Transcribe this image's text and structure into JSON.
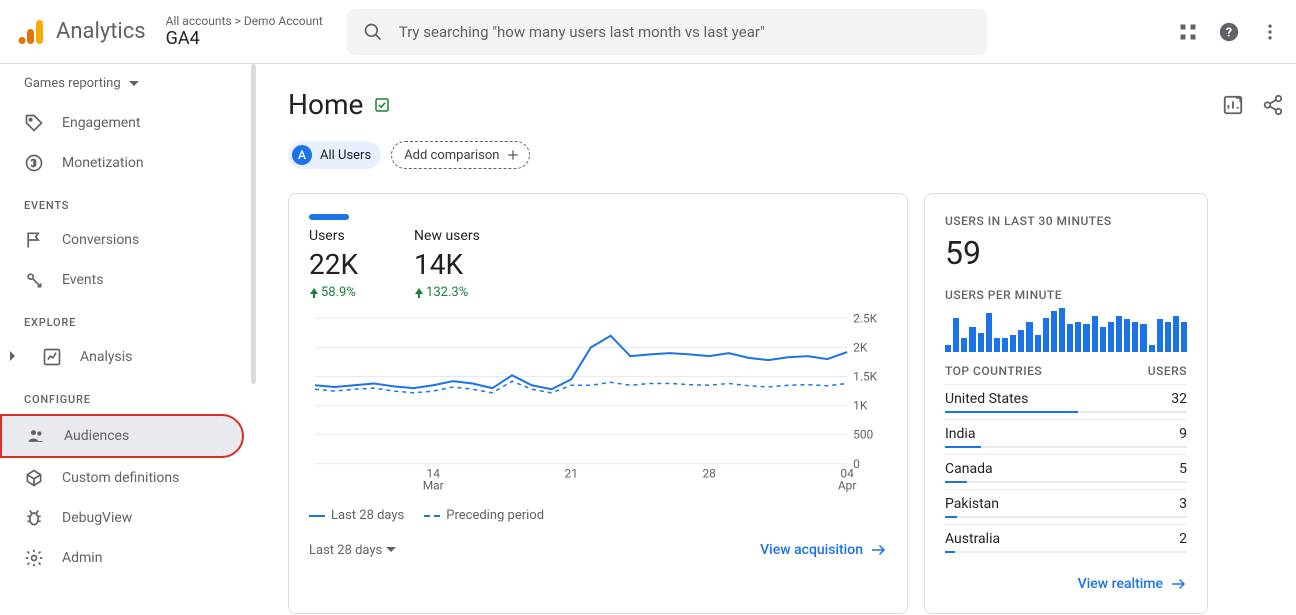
{
  "header": {
    "product": "Analytics",
    "breadcrumb": "All accounts > Demo Account",
    "property": "GA4",
    "search_placeholder": "Try searching \"how many users last month vs last year\""
  },
  "sidebar": {
    "report_selector": "Games reporting",
    "items": [
      {
        "icon": "tag",
        "label": "Engagement"
      },
      {
        "icon": "dollar",
        "label": "Monetization"
      }
    ],
    "section_events": "EVENTS",
    "events_items": [
      {
        "icon": "flag",
        "label": "Conversions"
      },
      {
        "icon": "events",
        "label": "Events"
      }
    ],
    "section_explore": "EXPLORE",
    "explore_items": [
      {
        "icon": "analysis",
        "label": "Analysis"
      }
    ],
    "section_configure": "CONFIGURE",
    "configure_items": [
      {
        "icon": "audiences",
        "label": "Audiences",
        "highlighted": true
      },
      {
        "icon": "custom",
        "label": "Custom definitions"
      },
      {
        "icon": "debug",
        "label": "DebugView"
      }
    ],
    "admin": {
      "icon": "gear",
      "label": "Admin"
    }
  },
  "page": {
    "title": "Home",
    "audience_badge": "A",
    "audience_label": "All Users",
    "add_comparison": "Add comparison"
  },
  "main_card": {
    "metrics": [
      {
        "label": "Users",
        "value": "22K",
        "change": "58.9%"
      },
      {
        "label": "New users",
        "value": "14K",
        "change": "132.3%"
      }
    ],
    "chart": {
      "type": "line",
      "y_ticks": [
        "2.5K",
        "2K",
        "1.5K",
        "1K",
        "500",
        "0"
      ],
      "y_values": [
        2500,
        2000,
        1500,
        1000,
        500,
        0
      ],
      "x_ticks_top": [
        "14",
        "21",
        "28",
        "04"
      ],
      "x_ticks_bottom": [
        "Mar",
        "",
        "",
        "Apr"
      ],
      "series_current": [
        1350,
        1320,
        1350,
        1380,
        1330,
        1300,
        1350,
        1420,
        1380,
        1300,
        1520,
        1350,
        1280,
        1450,
        2000,
        2200,
        1850,
        1880,
        1900,
        1880,
        1850,
        1900,
        1820,
        1780,
        1830,
        1850,
        1800,
        1920
      ],
      "series_previous": [
        1280,
        1250,
        1280,
        1300,
        1250,
        1220,
        1250,
        1320,
        1280,
        1220,
        1420,
        1280,
        1220,
        1350,
        1350,
        1400,
        1350,
        1380,
        1380,
        1360,
        1350,
        1380,
        1340,
        1320,
        1350,
        1360,
        1340,
        1380
      ],
      "ylim": [
        0,
        2500
      ],
      "line_color": "#1a73e8",
      "grid_color": "#e8eaed",
      "background_color": "#ffffff"
    },
    "legend": [
      {
        "label": "Last 28 days",
        "style": "solid"
      },
      {
        "label": "Preceding period",
        "style": "dashed"
      }
    ],
    "date_range": "Last 28 days",
    "link": "View acquisition"
  },
  "realtime_card": {
    "label1": "USERS IN LAST 30 MINUTES",
    "value": "59",
    "label2": "USERS PER MINUTE",
    "spark_values": [
      5,
      25,
      10,
      18,
      14,
      28,
      10,
      10,
      12,
      16,
      22,
      12,
      25,
      30,
      32,
      20,
      22,
      20,
      26,
      18,
      22,
      26,
      24,
      22,
      20,
      5,
      24,
      22,
      26,
      22
    ],
    "spark_color": "#1a73e8",
    "countries_header": {
      "left": "TOP COUNTRIES",
      "right": "USERS"
    },
    "countries": [
      {
        "name": "United States",
        "users": "32",
        "bar_pct": 55
      },
      {
        "name": "India",
        "users": "9",
        "bar_pct": 15
      },
      {
        "name": "Canada",
        "users": "5",
        "bar_pct": 9
      },
      {
        "name": "Pakistan",
        "users": "3",
        "bar_pct": 5
      },
      {
        "name": "Australia",
        "users": "2",
        "bar_pct": 4
      }
    ],
    "link": "View realtime"
  }
}
